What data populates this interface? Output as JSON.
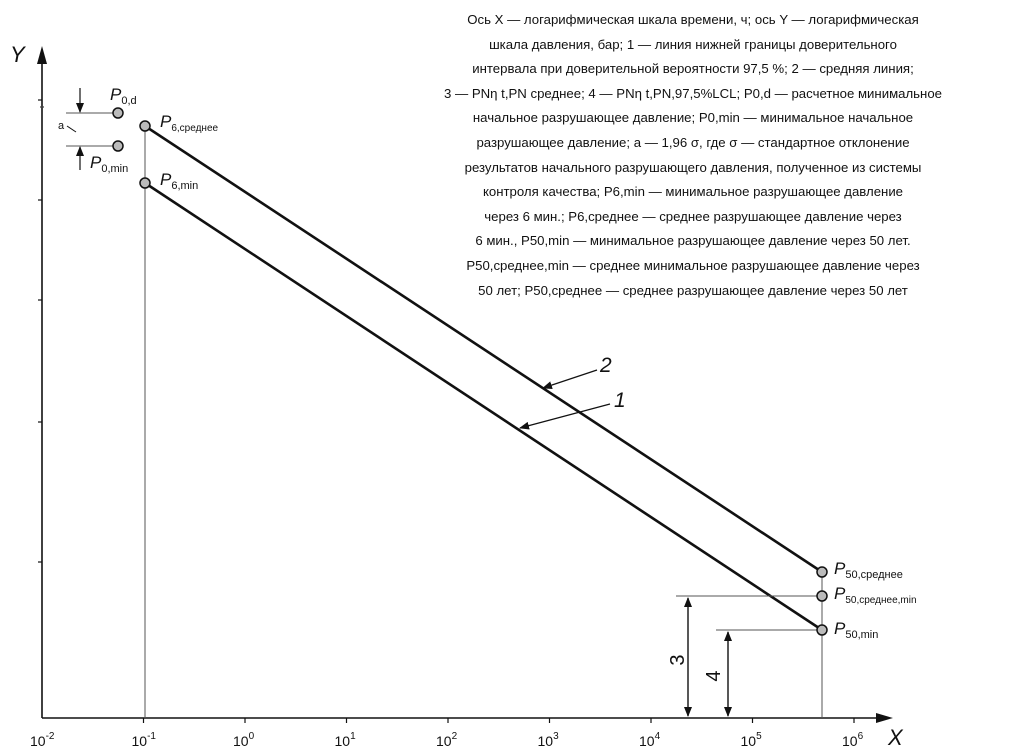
{
  "axes": {
    "x_label": "X",
    "y_label": "Y"
  },
  "x_ticks": [
    {
      "base": "10",
      "exp": "-2"
    },
    {
      "base": "10",
      "exp": "-1"
    },
    {
      "base": "10",
      "exp": "0"
    },
    {
      "base": "10",
      "exp": "1"
    },
    {
      "base": "10",
      "exp": "2"
    },
    {
      "base": "10",
      "exp": "3"
    },
    {
      "base": "10",
      "exp": "4"
    },
    {
      "base": "10",
      "exp": "5"
    },
    {
      "base": "10",
      "exp": "6"
    }
  ],
  "line_labels": {
    "line1": "1",
    "line2": "2"
  },
  "dimension_labels": {
    "dim3": "3",
    "dim4": "4",
    "a": "a"
  },
  "points": {
    "p0d": {
      "main": "P",
      "sub": "0,d"
    },
    "p0min": {
      "main": "P",
      "sub": "0,min"
    },
    "p6avg": {
      "main": "P",
      "sub": "6,среднее"
    },
    "p6min": {
      "main": "P",
      "sub": "6,min"
    },
    "p50avg": {
      "main": "P",
      "sub": "50,среднее"
    },
    "p50avgmin": {
      "main": "P",
      "sub": "50,среднее,min"
    },
    "p50min": {
      "main": "P",
      "sub": "50,min"
    }
  },
  "legend_lines": [
    "Ось X — логарифмическая шкала времени, ч; ось Y — логарифмическая",
    "шкала давления, бар; 1 — линия нижней границы доверительного",
    "интервала при доверительной вероятности 97,5 %; 2 — средняя линия;",
    "3 — PNη t,PN среднее; 4 — PNη t,PN,97,5%LCL; P0,d — расчетное минимальное",
    "начальное разрушающее давление; P0,min — минимальное начальное",
    "разрушающее давление; а — 1,96 σ, где σ — стандартное отклонение",
    "результатов начального разрушающего давления, полученное из системы",
    "контроля качества; P6,min — минимальное разрушающее давление",
    "через 6 мин.; P6,среднее — среднее разрушающее давление через",
    "6 мин., P50,min — минимальное разрушающее давление через 50 лет.",
    "P50,среднее,min — среднее минимальное разрушающее давление через",
    "50 лет; P50,среднее — среднее разрушающее давление через 50 лет"
  ]
}
